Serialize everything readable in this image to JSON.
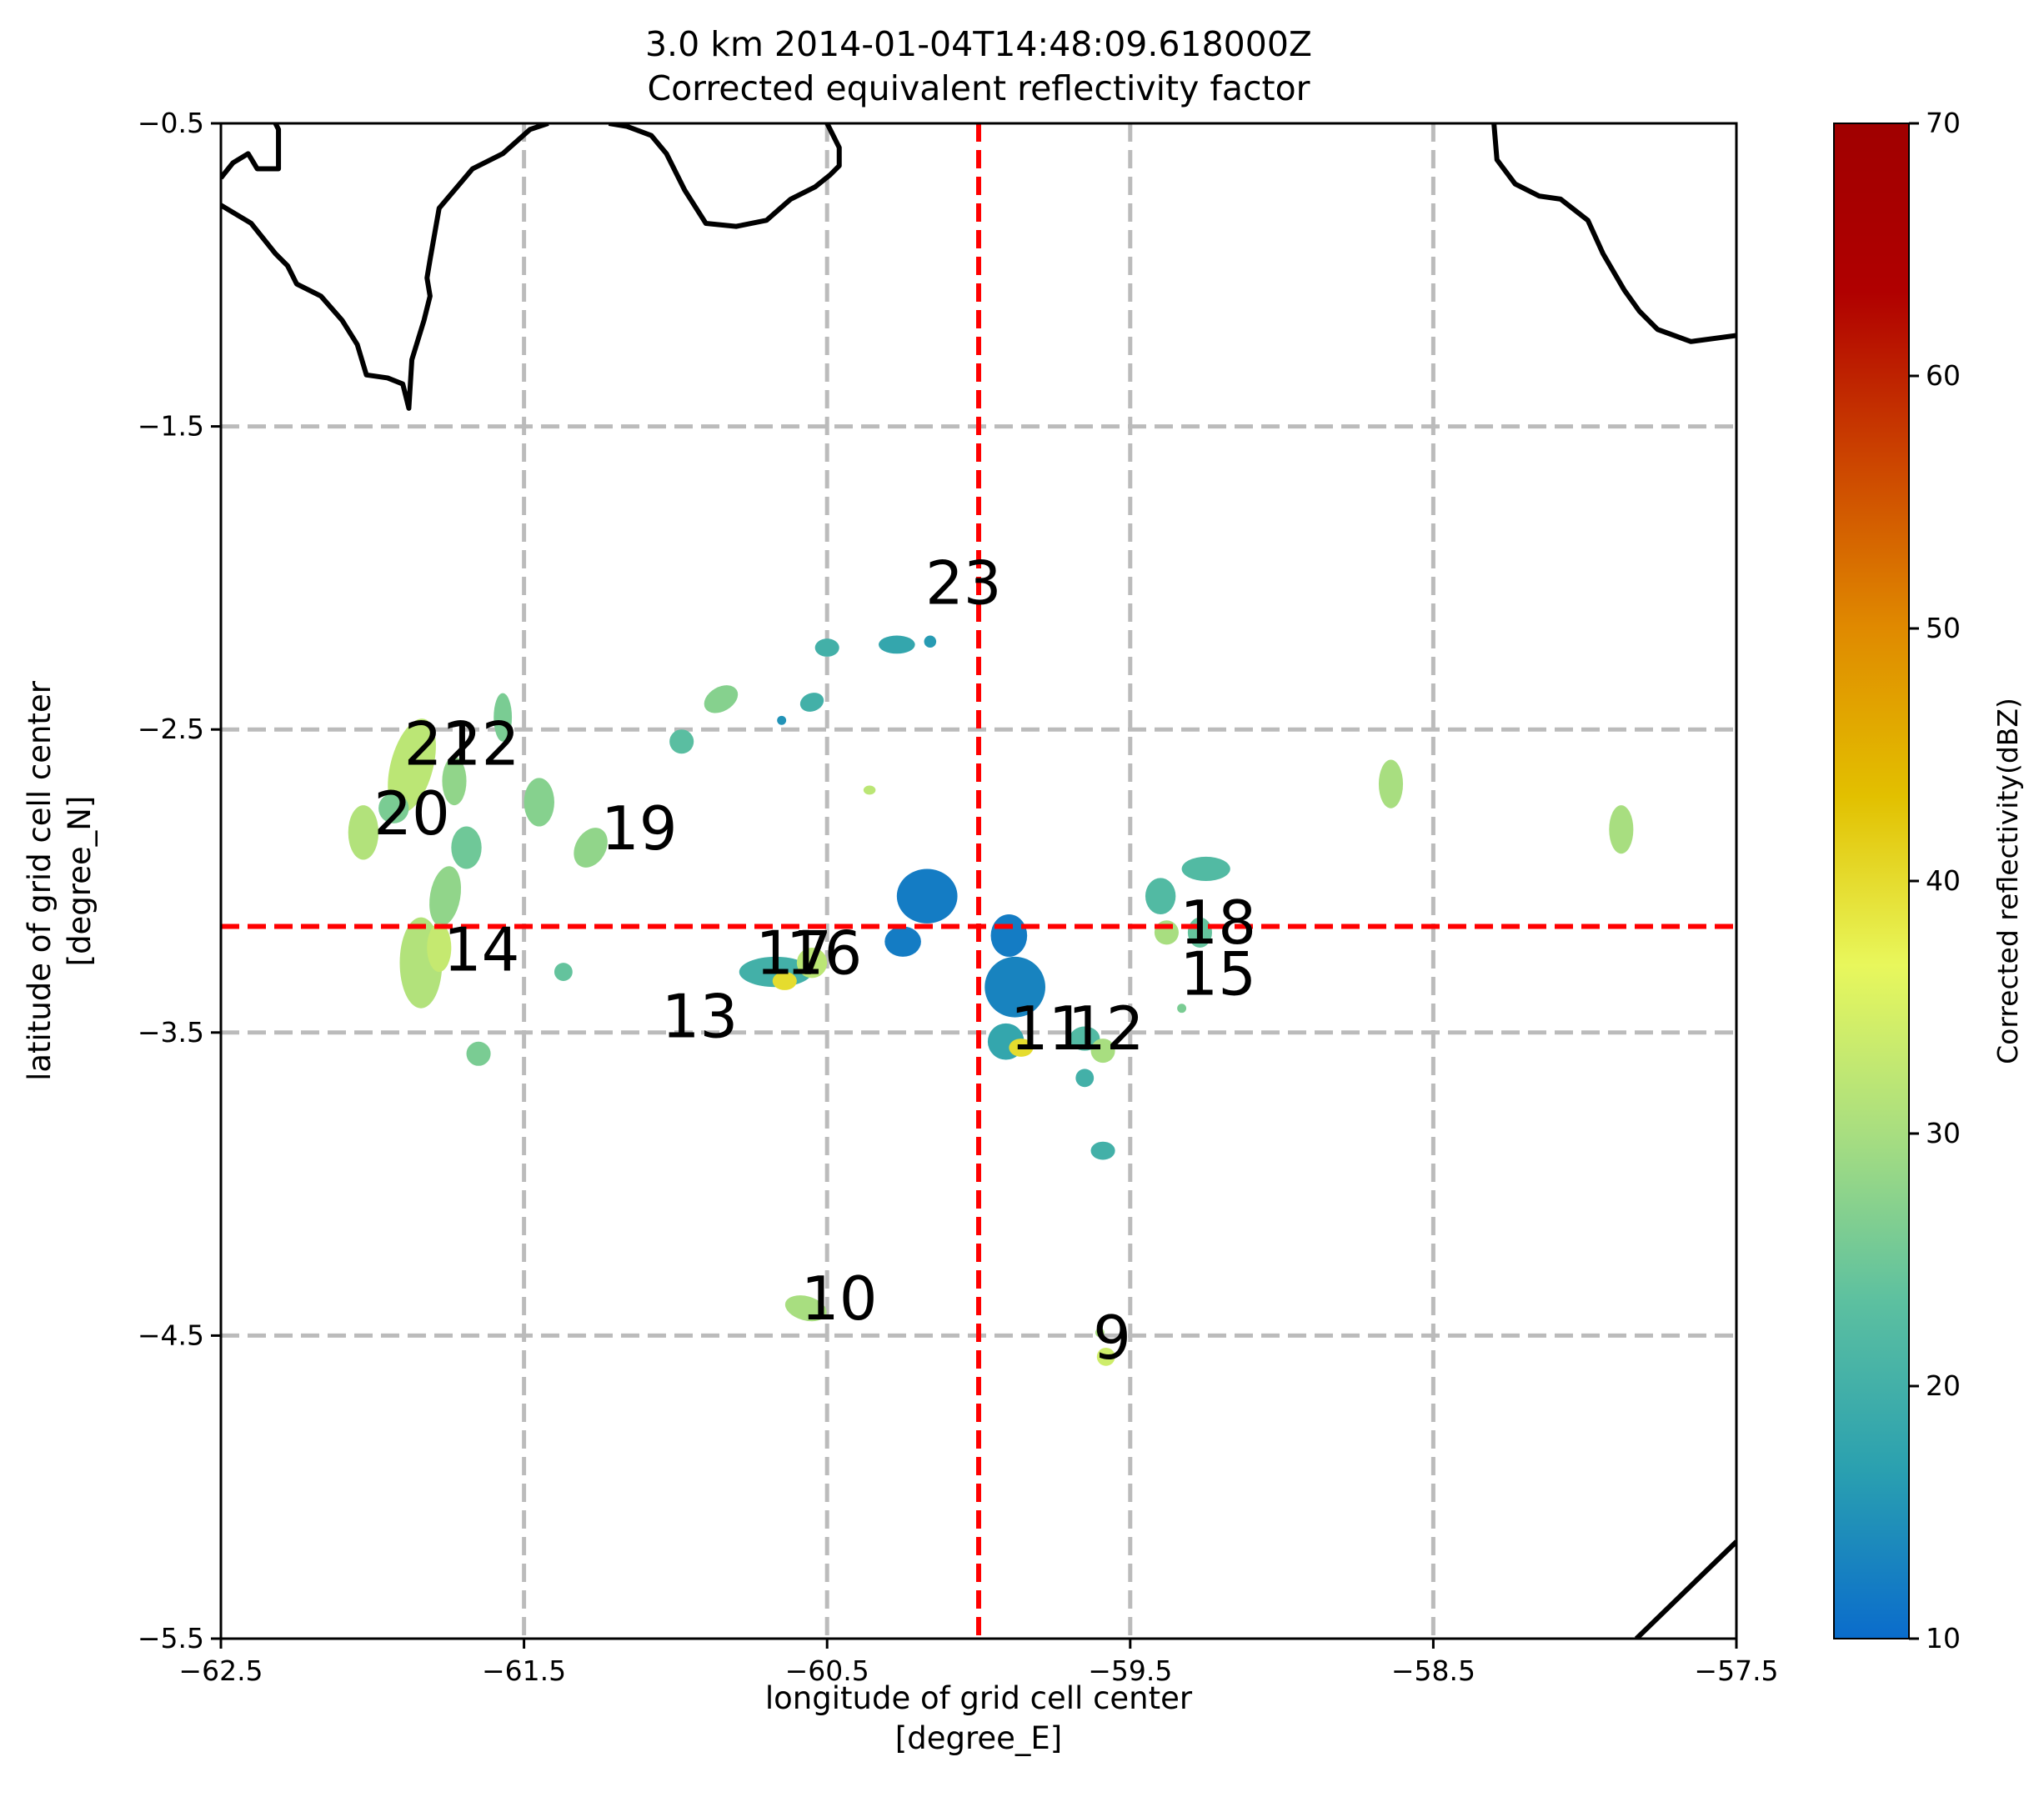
{
  "chart_data": {
    "type": "heatmap",
    "title": [
      "3.0 km 2014-01-04T14:48:09.618000Z",
      "Corrected equivalent reflectivity factor"
    ],
    "xlabel": [
      "longitude of grid cell center",
      "[degree_E]"
    ],
    "ylabel": [
      "latitude of grid cell center",
      "[degree_N]"
    ],
    "xlim": [
      -62.5,
      -57.5
    ],
    "ylim": [
      -5.5,
      -0.5
    ],
    "xticks": [
      -62.5,
      -61.5,
      -60.5,
      -59.5,
      -58.5,
      -57.5
    ],
    "yticks": [
      -5.5,
      -4.5,
      -3.5,
      -2.5,
      -1.5,
      -0.5
    ],
    "xtick_labels": [
      "−62.5",
      "−61.5",
      "−60.5",
      "−59.5",
      "−58.5",
      "−57.5"
    ],
    "ytick_labels": [
      "−5.5",
      "−4.5",
      "−3.5",
      "−2.5",
      "−1.5",
      "−0.5"
    ],
    "grid": true,
    "grid_color": "#bbbbbb",
    "crosshair": {
      "lon": -60.0,
      "lat": -3.15,
      "color": "#ff0000"
    },
    "colorbar": {
      "label": "Corrected reflectivity(dBZ)",
      "range": [
        10,
        70
      ],
      "ticks": [
        10,
        20,
        30,
        40,
        50,
        60,
        70
      ],
      "colors": [
        "#0a6ccc",
        "#2aa0b0",
        "#5cc0a0",
        "#a8de80",
        "#e8f75c",
        "#e2c000",
        "#e08a00",
        "#cc4400",
        "#b00000",
        "#a00000"
      ]
    },
    "cell_labels": [
      {
        "text": "23",
        "lon": -60.05,
        "lat": -2.02
      },
      {
        "text": "21",
        "lon": -61.77,
        "lat": -2.55
      },
      {
        "text": "22",
        "lon": -61.64,
        "lat": -2.55
      },
      {
        "text": "20",
        "lon": -61.87,
        "lat": -2.78
      },
      {
        "text": "19",
        "lon": -61.12,
        "lat": -2.83
      },
      {
        "text": "14",
        "lon": -61.64,
        "lat": -3.23
      },
      {
        "text": "17",
        "lon": -60.61,
        "lat": -3.24
      },
      {
        "text": "16",
        "lon": -60.51,
        "lat": -3.24
      },
      {
        "text": "13",
        "lon": -60.92,
        "lat": -3.45
      },
      {
        "text": "18",
        "lon": -59.21,
        "lat": -3.14
      },
      {
        "text": "15",
        "lon": -59.21,
        "lat": -3.31
      },
      {
        "text": "11",
        "lon": -59.77,
        "lat": -3.49
      },
      {
        "text": "12",
        "lon": -59.58,
        "lat": -3.49
      },
      {
        "text": "10",
        "lon": -60.46,
        "lat": -4.38
      },
      {
        "text": "9",
        "lon": -59.56,
        "lat": -4.51
      }
    ],
    "echoes": [
      {
        "lon": -61.87,
        "lat": -2.62,
        "rx": 0.07,
        "ry": 0.16,
        "dbz": 32,
        "rot": 15
      },
      {
        "lon": -61.73,
        "lat": -2.67,
        "rx": 0.04,
        "ry": 0.08,
        "dbz": 28,
        "rot": 0
      },
      {
        "lon": -61.57,
        "lat": -2.46,
        "rx": 0.03,
        "ry": 0.08,
        "dbz": 26,
        "rot": 0
      },
      {
        "lon": -61.45,
        "lat": -2.74,
        "rx": 0.05,
        "ry": 0.08,
        "dbz": 27,
        "rot": 0
      },
      {
        "lon": -61.93,
        "lat": -2.76,
        "rx": 0.05,
        "ry": 0.05,
        "dbz": 26,
        "rot": 0
      },
      {
        "lon": -62.03,
        "lat": -2.84,
        "rx": 0.05,
        "ry": 0.09,
        "dbz": 31,
        "rot": 0
      },
      {
        "lon": -61.69,
        "lat": -2.89,
        "rx": 0.05,
        "ry": 0.07,
        "dbz": 25,
        "rot": 0
      },
      {
        "lon": -61.28,
        "lat": -2.89,
        "rx": 0.05,
        "ry": 0.07,
        "dbz": 28,
        "rot": 30
      },
      {
        "lon": -61.76,
        "lat": -3.05,
        "rx": 0.05,
        "ry": 0.1,
        "dbz": 28,
        "rot": 10
      },
      {
        "lon": -61.84,
        "lat": -3.27,
        "rx": 0.07,
        "ry": 0.15,
        "dbz": 31,
        "rot": 0
      },
      {
        "lon": -61.78,
        "lat": -3.22,
        "rx": 0.04,
        "ry": 0.08,
        "dbz": 33,
        "rot": 0
      },
      {
        "lon": -61.37,
        "lat": -3.3,
        "rx": 0.03,
        "ry": 0.03,
        "dbz": 24,
        "rot": 0
      },
      {
        "lon": -61.65,
        "lat": -3.57,
        "rx": 0.04,
        "ry": 0.04,
        "dbz": 26,
        "rot": 0
      },
      {
        "lon": -60.85,
        "lat": -2.4,
        "rx": 0.06,
        "ry": 0.04,
        "dbz": 27,
        "rot": -30
      },
      {
        "lon": -60.98,
        "lat": -2.54,
        "rx": 0.04,
        "ry": 0.04,
        "dbz": 23,
        "rot": 0
      },
      {
        "lon": -60.5,
        "lat": -2.23,
        "rx": 0.04,
        "ry": 0.03,
        "dbz": 20,
        "rot": 0
      },
      {
        "lon": -60.55,
        "lat": -2.41,
        "rx": 0.04,
        "ry": 0.03,
        "dbz": 20,
        "rot": -20
      },
      {
        "lon": -60.27,
        "lat": -2.22,
        "rx": 0.06,
        "ry": 0.03,
        "dbz": 18,
        "rot": 0
      },
      {
        "lon": -60.16,
        "lat": -2.21,
        "rx": 0.02,
        "ry": 0.02,
        "dbz": 16,
        "rot": 0
      },
      {
        "lon": -60.65,
        "lat": -2.47,
        "rx": 0.015,
        "ry": 0.015,
        "dbz": 15,
        "rot": 0
      },
      {
        "lon": -60.36,
        "lat": -2.7,
        "rx": 0.02,
        "ry": 0.015,
        "dbz": 32,
        "rot": 0
      },
      {
        "lon": -60.67,
        "lat": -3.3,
        "rx": 0.12,
        "ry": 0.05,
        "dbz": 20,
        "rot": 0
      },
      {
        "lon": -60.64,
        "lat": -3.33,
        "rx": 0.04,
        "ry": 0.03,
        "dbz": 40,
        "rot": 0
      },
      {
        "lon": -60.55,
        "lat": -3.27,
        "rx": 0.05,
        "ry": 0.05,
        "dbz": 32,
        "rot": 0
      },
      {
        "lon": -60.17,
        "lat": -3.05,
        "rx": 0.1,
        "ry": 0.09,
        "dbz": 12,
        "rot": 0
      },
      {
        "lon": -60.25,
        "lat": -3.2,
        "rx": 0.06,
        "ry": 0.05,
        "dbz": 12,
        "rot": 0
      },
      {
        "lon": -59.9,
        "lat": -3.18,
        "rx": 0.06,
        "ry": 0.07,
        "dbz": 12,
        "rot": 0
      },
      {
        "lon": -59.88,
        "lat": -3.35,
        "rx": 0.1,
        "ry": 0.1,
        "dbz": 13,
        "rot": 0
      },
      {
        "lon": -59.91,
        "lat": -3.53,
        "rx": 0.06,
        "ry": 0.06,
        "dbz": 18,
        "rot": 0
      },
      {
        "lon": -59.86,
        "lat": -3.55,
        "rx": 0.04,
        "ry": 0.03,
        "dbz": 40,
        "rot": 0
      },
      {
        "lon": -59.65,
        "lat": -3.52,
        "rx": 0.05,
        "ry": 0.04,
        "dbz": 22,
        "rot": 0
      },
      {
        "lon": -59.59,
        "lat": -3.56,
        "rx": 0.04,
        "ry": 0.04,
        "dbz": 30,
        "rot": 0
      },
      {
        "lon": -59.65,
        "lat": -3.65,
        "rx": 0.03,
        "ry": 0.03,
        "dbz": 20,
        "rot": 0
      },
      {
        "lon": -59.59,
        "lat": -3.89,
        "rx": 0.04,
        "ry": 0.03,
        "dbz": 20,
        "rot": 0
      },
      {
        "lon": -59.4,
        "lat": -3.05,
        "rx": 0.05,
        "ry": 0.06,
        "dbz": 22,
        "rot": 0
      },
      {
        "lon": -59.25,
        "lat": -2.96,
        "rx": 0.08,
        "ry": 0.04,
        "dbz": 22,
        "rot": 0
      },
      {
        "lon": -59.38,
        "lat": -3.17,
        "rx": 0.04,
        "ry": 0.04,
        "dbz": 30,
        "rot": 0
      },
      {
        "lon": -59.27,
        "lat": -3.17,
        "rx": 0.04,
        "ry": 0.05,
        "dbz": 24,
        "rot": 0
      },
      {
        "lon": -59.33,
        "lat": -3.42,
        "rx": 0.015,
        "ry": 0.015,
        "dbz": 26,
        "rot": 0
      },
      {
        "lon": -60.57,
        "lat": -4.41,
        "rx": 0.07,
        "ry": 0.04,
        "dbz": 30,
        "rot": 15
      },
      {
        "lon": -59.58,
        "lat": -4.57,
        "rx": 0.03,
        "ry": 0.03,
        "dbz": 34,
        "rot": 0
      },
      {
        "lon": -59.6,
        "lat": -4.49,
        "rx": 0.015,
        "ry": 0.015,
        "dbz": 30,
        "rot": 0
      },
      {
        "lon": -58.64,
        "lat": -2.68,
        "rx": 0.04,
        "ry": 0.08,
        "dbz": 30,
        "rot": 0
      },
      {
        "lon": -57.88,
        "lat": -2.83,
        "rx": 0.04,
        "ry": 0.08,
        "dbz": 30,
        "rot": 0
      }
    ],
    "coastlines": [
      [
        [
          -62.5,
          -0.77
        ],
        [
          -62.4,
          -0.83
        ],
        [
          -62.32,
          -0.93
        ],
        [
          -62.28,
          -0.97
        ],
        [
          -62.25,
          -1.03
        ],
        [
          -62.17,
          -1.07
        ],
        [
          -62.1,
          -1.15
        ],
        [
          -62.05,
          -1.23
        ],
        [
          -62.02,
          -1.33
        ],
        [
          -61.95,
          -1.34
        ],
        [
          -61.9,
          -1.36
        ],
        [
          -61.88,
          -1.44
        ],
        [
          -61.87,
          -1.28
        ],
        [
          -61.83,
          -1.15
        ],
        [
          -61.81,
          -1.07
        ],
        [
          -61.82,
          -1.01
        ],
        [
          -61.81,
          -0.95
        ],
        [
          -61.78,
          -0.78
        ],
        [
          -61.67,
          -0.65
        ],
        [
          -61.57,
          -0.6
        ],
        [
          -61.48,
          -0.52
        ],
        [
          -61.42,
          -0.5
        ]
      ],
      [
        [
          -62.5,
          -0.68
        ],
        [
          -62.46,
          -0.63
        ],
        [
          -62.41,
          -0.6
        ],
        [
          -62.38,
          -0.65
        ],
        [
          -62.31,
          -0.65
        ],
        [
          -62.31,
          -0.52
        ],
        [
          -62.32,
          -0.5
        ]
      ],
      [
        [
          -61.22,
          -0.5
        ],
        [
          -61.16,
          -0.51
        ],
        [
          -61.08,
          -0.54
        ],
        [
          -61.03,
          -0.6
        ],
        [
          -60.97,
          -0.72
        ],
        [
          -60.9,
          -0.83
        ],
        [
          -60.8,
          -0.84
        ],
        [
          -60.7,
          -0.82
        ],
        [
          -60.62,
          -0.75
        ],
        [
          -60.54,
          -0.71
        ],
        [
          -60.49,
          -0.67
        ],
        [
          -60.46,
          -0.64
        ],
        [
          -60.46,
          -0.58
        ],
        [
          -60.49,
          -0.52
        ],
        [
          -60.5,
          -0.5
        ]
      ],
      [
        [
          -58.3,
          -0.5
        ],
        [
          -58.29,
          -0.62
        ],
        [
          -58.23,
          -0.7
        ],
        [
          -58.15,
          -0.74
        ],
        [
          -58.08,
          -0.75
        ],
        [
          -57.99,
          -0.82
        ],
        [
          -57.94,
          -0.93
        ],
        [
          -57.87,
          -1.05
        ],
        [
          -57.82,
          -1.12
        ],
        [
          -57.76,
          -1.18
        ],
        [
          -57.65,
          -1.22
        ],
        [
          -57.5,
          -1.2
        ]
      ],
      [
        [
          -57.5,
          -5.18
        ],
        [
          -57.83,
          -5.5
        ]
      ]
    ]
  }
}
